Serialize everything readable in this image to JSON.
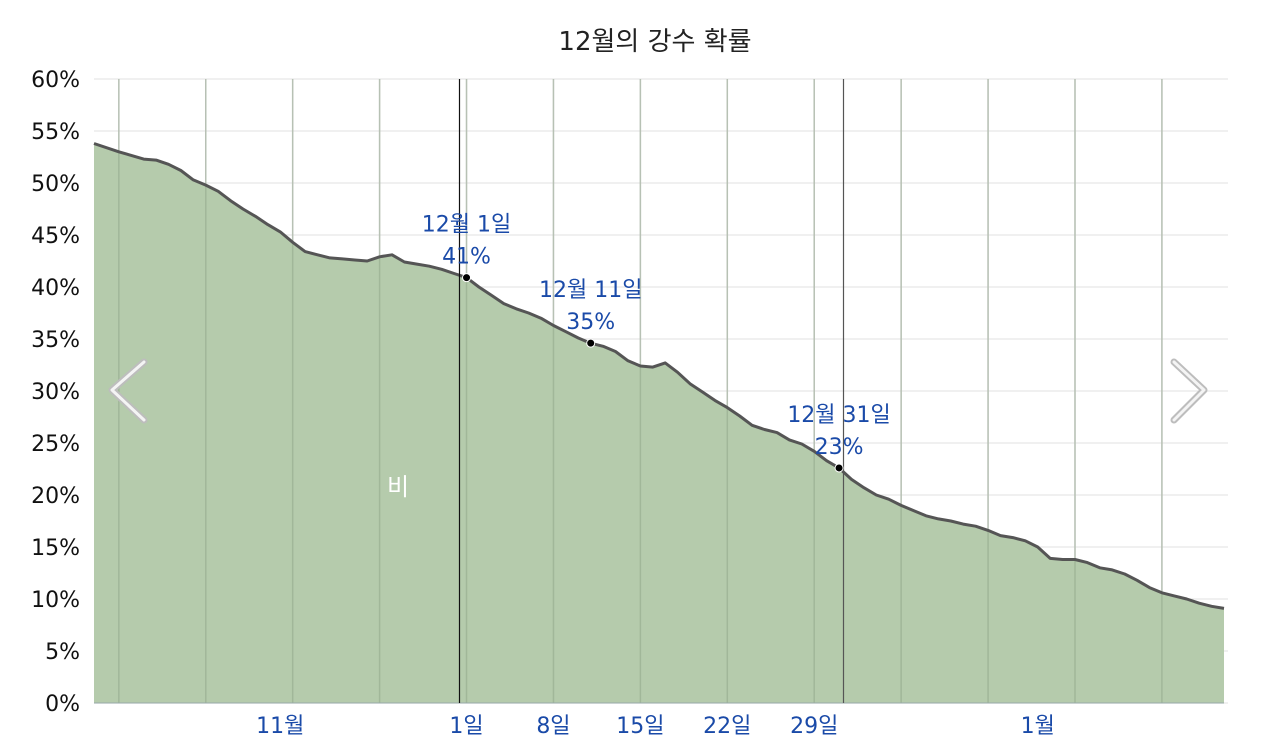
{
  "chart_data": {
    "type": "area",
    "title": "12월의 강수 확률",
    "xlabel": "",
    "ylabel": "",
    "ylim": [
      0,
      60
    ],
    "y_ticks": [
      "0%",
      "5%",
      "10%",
      "15%",
      "20%",
      "25%",
      "30%",
      "35%",
      "40%",
      "45%",
      "50%",
      "55%",
      "60%"
    ],
    "x_tick_labels": [
      {
        "label": "11월",
        "day": -14
      },
      {
        "label": "1일",
        "day": 1
      },
      {
        "label": "8일",
        "day": 8
      },
      {
        "label": "15일",
        "day": 15
      },
      {
        "label": "22일",
        "day": 22
      },
      {
        "label": "29일",
        "day": 29
      },
      {
        "label": "1월",
        "day": 47
      }
    ],
    "xlim": [
      -29,
      62
    ],
    "x_unit": "day of December",
    "series": [
      {
        "name": "비",
        "color": "#b5cbac",
        "x": [
          -29,
          -27,
          -25,
          -24,
          -23,
          -22,
          -21,
          -20,
          -19,
          -18,
          -17,
          -16,
          -15,
          -14,
          -13,
          -12,
          -11,
          -10,
          -9,
          -8,
          -7,
          -6,
          -5,
          -4,
          -3,
          -2,
          -1,
          0,
          1,
          2,
          3,
          4,
          5,
          6,
          7,
          8,
          9,
          10,
          11,
          12,
          13,
          14,
          15,
          16,
          17,
          18,
          19,
          20,
          21,
          22,
          23,
          24,
          25,
          26,
          27,
          28,
          29,
          30,
          31,
          32,
          33,
          34,
          35,
          36,
          37,
          38,
          39,
          40,
          41,
          42,
          43,
          44,
          45,
          46,
          47,
          48,
          49,
          50,
          51,
          52,
          53,
          54,
          55,
          56,
          57,
          58,
          59,
          60,
          61,
          62
        ],
        "y": [
          53.8,
          53.0,
          52.3,
          52.2,
          51.8,
          51.2,
          50.3,
          49.8,
          49.2,
          48.3,
          47.5,
          46.8,
          46.0,
          45.3,
          44.3,
          43.4,
          43.1,
          42.8,
          42.7,
          42.6,
          42.5,
          42.9,
          43.1,
          42.4,
          42.2,
          42.0,
          41.7,
          41.3,
          40.9,
          40.0,
          39.2,
          38.4,
          37.9,
          37.5,
          37.0,
          36.3,
          35.7,
          35.1,
          34.6,
          34.3,
          33.8,
          32.9,
          32.4,
          32.3,
          32.7,
          31.8,
          30.7,
          29.9,
          29.1,
          28.4,
          27.6,
          26.7,
          26.3,
          26.0,
          25.3,
          24.9,
          24.2,
          23.3,
          22.6,
          21.5,
          20.7,
          20.0,
          19.6,
          19.0,
          18.5,
          18.0,
          17.7,
          17.5,
          17.2,
          17.0,
          16.6,
          16.1,
          15.9,
          15.6,
          15.0,
          13.9,
          13.8,
          13.8,
          13.5,
          13.0,
          12.8,
          12.4,
          11.8,
          11.1,
          10.6,
          10.3,
          10.0,
          9.6,
          9.3,
          9.1
        ]
      }
    ],
    "annotations": [
      {
        "day": 1,
        "date": "12월 1일",
        "value": 41,
        "label": "41%"
      },
      {
        "day": 11,
        "date": "12월 11일",
        "value": 35,
        "label": "35%"
      },
      {
        "day": 31,
        "date": "12월 31일",
        "value": 23,
        "label": "23%"
      }
    ],
    "grid": true,
    "legend": "none"
  },
  "nav": {
    "prev_icon": "chevron-left-icon",
    "next_icon": "chevron-right-icon"
  }
}
